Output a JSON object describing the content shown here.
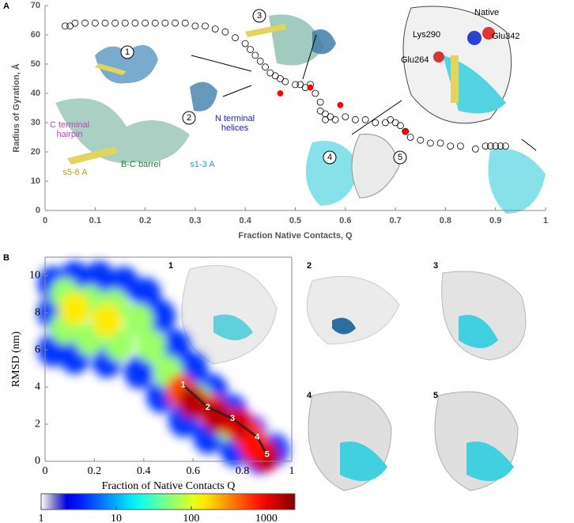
{
  "panels": [
    "A",
    "B"
  ],
  "chart_data": [
    {
      "type": "scatter",
      "xlabel": "Fraction Native Contacts, Q",
      "ylabel": "Radius of Gyration, Å",
      "xlim": [
        0,
        1
      ],
      "ylim": [
        0,
        70
      ],
      "xticks": [
        0,
        0.1,
        0.2,
        0.3,
        0.4,
        0.5,
        0.6,
        0.7,
        0.8,
        0.9,
        1
      ],
      "yticks": [
        0,
        10,
        20,
        30,
        40,
        50,
        60,
        70
      ],
      "series": [
        {
          "color": "#000000",
          "x": [
            0.04,
            0.05,
            0.06,
            0.08,
            0.1,
            0.12,
            0.14,
            0.16,
            0.18,
            0.2,
            0.22,
            0.24,
            0.26,
            0.28,
            0.3,
            0.32,
            0.34,
            0.36,
            0.38,
            0.4,
            0.41,
            0.42,
            0.43,
            0.44,
            0.45,
            0.46,
            0.47,
            0.48,
            0.5,
            0.51,
            0.52,
            0.53,
            0.54,
            0.55,
            0.55,
            0.56,
            0.56,
            0.57,
            0.58,
            0.6,
            0.62,
            0.64,
            0.66,
            0.68,
            0.69,
            0.7,
            0.71,
            0.72,
            0.73,
            0.75,
            0.77,
            0.79,
            0.81,
            0.83,
            0.86,
            0.88,
            0.89,
            0.9,
            0.91,
            0.92
          ],
          "values": [
            63,
            63,
            64,
            64,
            64,
            64,
            64,
            64,
            64,
            64,
            64,
            64,
            64,
            64,
            63,
            63,
            62,
            61,
            59,
            57,
            55,
            53,
            51,
            49,
            47,
            46,
            45,
            44,
            43,
            43,
            42,
            43,
            40,
            37,
            34,
            33,
            31,
            32,
            31,
            32,
            31,
            31,
            30,
            30,
            31,
            30,
            29,
            27,
            25,
            24,
            23,
            23,
            22,
            22,
            21,
            22,
            22,
            22,
            22,
            22
          ]
        },
        {
          "color": "#ff0000",
          "x": [
            0.47,
            0.53,
            0.59,
            0.72
          ],
          "values": [
            40,
            42,
            36,
            27
          ]
        }
      ],
      "annotations": [
        "Native",
        "Lys290",
        "Glu342",
        "Glu264",
        "C terminal",
        "hairpin",
        "s5-6 A",
        "B-C barrel",
        "s1-3 A",
        "N terminal",
        "helices",
        "1",
        "2",
        "3",
        "4",
        "5"
      ]
    },
    {
      "type": "heatmap",
      "xlabel": "Fraction of Native Contacts Q",
      "ylabel": "RMSD (nm)",
      "xlim": [
        0,
        1
      ],
      "ylim": [
        0,
        11
      ],
      "xticks": [
        0,
        0.2,
        0.4,
        0.6,
        0.8,
        1
      ],
      "yticks": [
        0,
        2,
        4,
        6,
        8,
        10
      ],
      "x": [
        0.03,
        0.03,
        0.03,
        0.12,
        0.22,
        0.32,
        0.41,
        0.47,
        0.53,
        0.6,
        0.68,
        0.76,
        0.84,
        0.93,
        0.12,
        0.25,
        0.38,
        0.47,
        0.56,
        0.66,
        0.77,
        0.87,
        0.08,
        0.08,
        0.18,
        0.18,
        0.28,
        0.3,
        0.38,
        0.43,
        0.5,
        0.62,
        0.74,
        0.85,
        0.12,
        0.25,
        0.55,
        0.68,
        0.82,
        0.6,
        0.7,
        0.78,
        0.89,
        0.85
      ],
      "y": [
        6,
        8,
        9.6,
        9.9,
        9.9,
        9.6,
        9,
        7.8,
        6.2,
        5,
        3.8,
        2.7,
        1.6,
        0.6,
        5.6,
        5.4,
        4.8,
        3.5,
        2.2,
        1.3,
        0.6,
        0.2,
        7.2,
        9,
        8.6,
        6.6,
        8.4,
        6.3,
        7.6,
        6.2,
        4.8,
        3.3,
        2,
        0.9,
        8.2,
        7.6,
        3.8,
        2.7,
        1.5,
        3.2,
        2.4,
        2,
        0.3,
        0.8
      ],
      "values": [
        4,
        4,
        4,
        4,
        4,
        4,
        4,
        4,
        4,
        4,
        4,
        4,
        4,
        4,
        4,
        4,
        4,
        4,
        4,
        4,
        4,
        4,
        60,
        60,
        60,
        60,
        60,
        60,
        60,
        60,
        60,
        60,
        60,
        60,
        150,
        150,
        500,
        500,
        500,
        1500,
        1500,
        1200,
        1500,
        800
      ],
      "path_labels": [
        "1",
        "2",
        "3",
        "4",
        "5"
      ],
      "path_x": [
        0.56,
        0.66,
        0.76,
        0.86,
        0.9
      ],
      "path_y": [
        4.1,
        2.9,
        2.3,
        1.3,
        0.35
      ],
      "colorbar": {
        "log": true,
        "lim": [
          1,
          2400
        ],
        "ticks": [
          1,
          10,
          100,
          1000
        ]
      },
      "snapshots": [
        "1",
        "2",
        "3",
        "4",
        "5"
      ]
    }
  ]
}
